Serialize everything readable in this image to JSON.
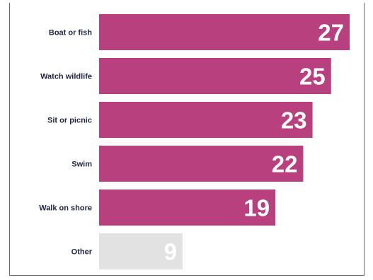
{
  "chart_data": {
    "type": "bar",
    "orientation": "horizontal",
    "categories": [
      "Boat or fish",
      "Watch wildlife",
      "Sit or picnic",
      "Swim",
      "Walk on shore",
      "Other"
    ],
    "values": [
      27,
      25,
      23,
      22,
      19,
      9
    ],
    "title": "",
    "xlabel": "",
    "ylabel": "",
    "xlim": [
      0,
      27
    ],
    "grid": false,
    "legend": "none",
    "bar_colors": [
      "#b8407e",
      "#b8407e",
      "#b8407e",
      "#b8407e",
      "#b8407e",
      "#e2e2e2"
    ]
  }
}
